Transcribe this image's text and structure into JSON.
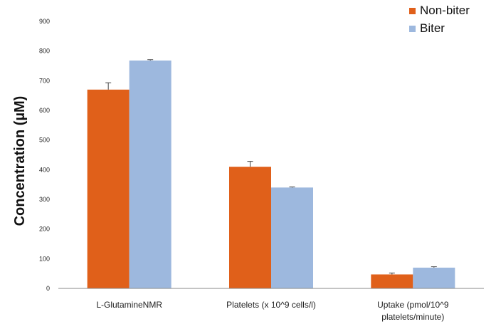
{
  "chart_data": {
    "type": "bar",
    "title": "",
    "xlabel": "",
    "ylabel": "Concentration (µM)",
    "ylim": [
      0,
      900
    ],
    "yticks": [
      0,
      100,
      200,
      300,
      400,
      500,
      600,
      700,
      800,
      900
    ],
    "grid": false,
    "legend_position": "top-right",
    "categories": [
      [
        "L-GlutamineNMR"
      ],
      [
        "Platelets (x 10^9 cells/l)"
      ],
      [
        "Uptake (pmol/10^9",
        "platelets/minute)"
      ]
    ],
    "series": [
      {
        "name": "Non-biter",
        "color": "#E0601A",
        "values": [
          670,
          410,
          47
        ],
        "errors": [
          23,
          18,
          5
        ]
      },
      {
        "name": "Biter",
        "color": "#9DB8DE",
        "values": [
          768,
          340,
          70
        ],
        "errors": [
          3,
          2,
          3
        ]
      }
    ]
  }
}
